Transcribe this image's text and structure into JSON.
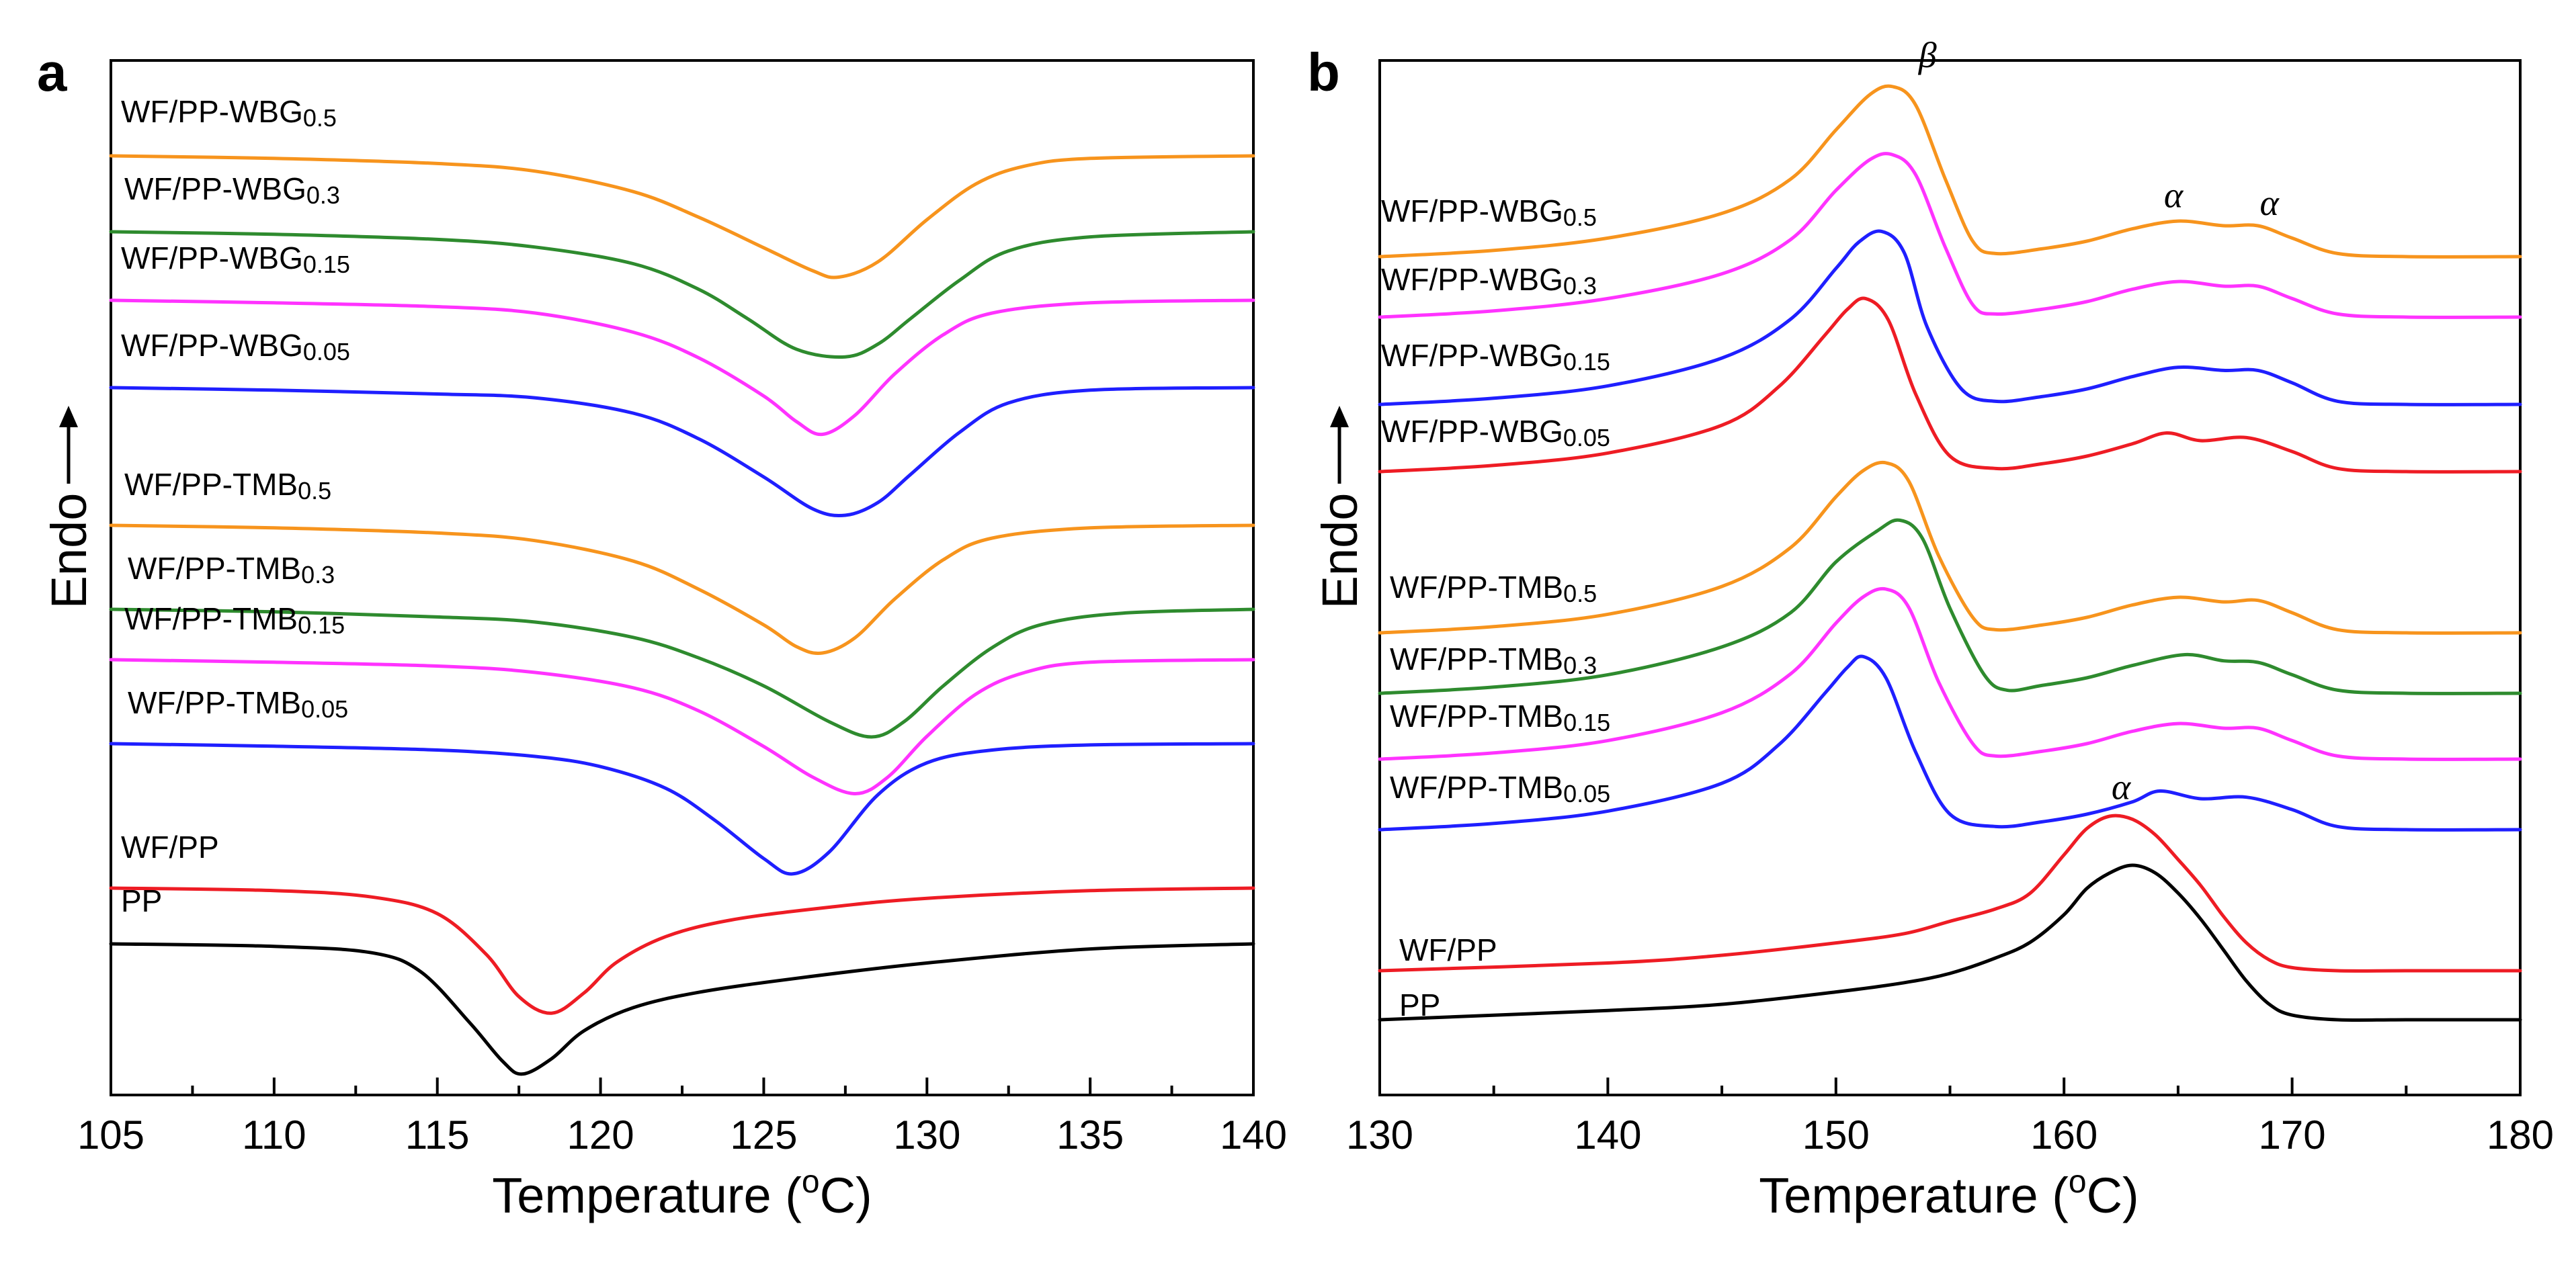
{
  "chart_data": [
    {
      "type": "line",
      "panel": "a",
      "xlabel": "Temperature (°C)",
      "ylabel": "Endo",
      "xlim": [
        105,
        140
      ],
      "xticks": [
        105,
        110,
        115,
        120,
        125,
        130,
        135,
        140
      ],
      "tick_labels": [
        "105",
        "110",
        "115",
        "120",
        "125",
        "130",
        "135",
        "140"
      ],
      "grid": false,
      "series": [
        {
          "name": "WF/PP-WBG0.5",
          "label_main": "WF/PP-WBG",
          "label_sub": "0.5",
          "color": "#f7941d",
          "x": [
            105,
            110,
            115,
            118,
            121,
            123,
            125,
            126.5,
            127.3,
            128.5,
            130,
            131.5,
            133,
            135,
            140
          ],
          "y": [
            0.0,
            0.02,
            0.06,
            0.12,
            0.28,
            0.48,
            0.72,
            0.9,
            0.95,
            0.83,
            0.5,
            0.22,
            0.08,
            0.02,
            0.0
          ]
        },
        {
          "name": "WF/PP-WBG0.3",
          "label_main": "WF/PP-WBG",
          "label_sub": "0.3",
          "color": "#2e8b2e",
          "x": [
            105,
            110,
            115,
            118,
            121,
            123,
            124.5,
            126,
            127.5,
            128.5,
            129.5,
            131,
            132.5,
            135,
            140
          ],
          "y": [
            0.0,
            0.02,
            0.06,
            0.12,
            0.25,
            0.45,
            0.68,
            0.92,
            0.98,
            0.88,
            0.68,
            0.38,
            0.15,
            0.04,
            0.0
          ]
        },
        {
          "name": "WF/PP-WBG0.15",
          "label_main": "WF/PP-WBG",
          "label_sub": "0.15",
          "color": "#ff33ff",
          "x": [
            105,
            110,
            115,
            118,
            121,
            123,
            125,
            126,
            126.8,
            127.8,
            129,
            130.5,
            132,
            135,
            140
          ],
          "y": [
            0.0,
            0.02,
            0.05,
            0.1,
            0.25,
            0.45,
            0.75,
            0.95,
            1.05,
            0.9,
            0.58,
            0.27,
            0.1,
            0.02,
            0.0
          ]
        },
        {
          "name": "WF/PP-WBG0.05",
          "label_main": "WF/PP-WBG",
          "label_sub": "0.05",
          "color": "#1f1fff",
          "x": [
            105,
            110,
            115,
            118,
            121,
            123,
            125,
            126.5,
            127.5,
            128.5,
            129.5,
            131,
            132.5,
            135,
            140
          ],
          "y": [
            0.0,
            0.02,
            0.05,
            0.08,
            0.2,
            0.4,
            0.7,
            0.95,
            1.0,
            0.9,
            0.68,
            0.35,
            0.12,
            0.02,
            0.0
          ]
        },
        {
          "name": "WF/PP-TMB0.5",
          "label_main": "WF/PP-TMB",
          "label_sub": "0.5",
          "color": "#f7941d",
          "x": [
            105,
            110,
            115,
            118,
            121,
            123,
            125,
            126,
            126.8,
            127.8,
            129,
            130.5,
            132,
            135,
            140
          ],
          "y": [
            0.0,
            0.02,
            0.06,
            0.12,
            0.28,
            0.5,
            0.78,
            0.95,
            1.0,
            0.88,
            0.58,
            0.27,
            0.1,
            0.02,
            0.0
          ]
        },
        {
          "name": "WF/PP-TMB0.3",
          "label_main": "WF/PP-TMB",
          "label_sub": "0.3",
          "color": "#2e8b2e",
          "x": [
            105,
            110,
            115,
            118,
            121,
            123,
            125,
            127,
            128.3,
            129.3,
            130.5,
            132,
            133.5,
            136,
            140
          ],
          "y": [
            0.0,
            0.02,
            0.06,
            0.1,
            0.22,
            0.38,
            0.6,
            0.88,
            1.0,
            0.88,
            0.6,
            0.3,
            0.12,
            0.03,
            0.0
          ]
        },
        {
          "name": "WF/PP-TMB0.15",
          "label_main": "WF/PP-TMB",
          "label_sub": "0.15",
          "color": "#ff33ff",
          "x": [
            105,
            110,
            115,
            118,
            121,
            123,
            125,
            126.5,
            127.8,
            128.8,
            130,
            131.5,
            133,
            135,
            140
          ],
          "y": [
            0.0,
            0.02,
            0.05,
            0.1,
            0.22,
            0.4,
            0.68,
            0.92,
            1.05,
            0.92,
            0.6,
            0.27,
            0.1,
            0.02,
            0.0
          ]
        },
        {
          "name": "WF/PP-TMB0.05",
          "label_main": "WF/PP-TMB",
          "label_sub": "0.05",
          "color": "#1f1fff",
          "x": [
            105,
            110,
            115,
            118,
            120,
            122,
            123.5,
            125,
            125.9,
            127,
            128.5,
            130,
            132,
            135,
            140
          ],
          "y": [
            0.0,
            0.02,
            0.05,
            0.1,
            0.18,
            0.35,
            0.6,
            0.9,
            1.02,
            0.85,
            0.4,
            0.15,
            0.05,
            0.01,
            0.0
          ]
        },
        {
          "name": "WF/PP",
          "label_main": "WF/PP",
          "label_sub": "",
          "color": "#ee1c24",
          "x": [
            105,
            110,
            113,
            115,
            116.5,
            117.5,
            118.5,
            119.5,
            120.5,
            122,
            124,
            127,
            130,
            135,
            140
          ],
          "y": [
            0.0,
            0.02,
            0.07,
            0.2,
            0.52,
            0.85,
            0.98,
            0.82,
            0.58,
            0.38,
            0.25,
            0.15,
            0.08,
            0.02,
            0.0
          ]
        },
        {
          "name": "PP",
          "label_main": "PP",
          "label_sub": "",
          "color": "#000000",
          "x": [
            105,
            110,
            113,
            114.5,
            116,
            117,
            117.6,
            118.5,
            119.5,
            121,
            123,
            126,
            130,
            135,
            140
          ],
          "y": [
            0.0,
            0.02,
            0.07,
            0.22,
            0.62,
            0.92,
            1.02,
            0.9,
            0.68,
            0.5,
            0.38,
            0.27,
            0.15,
            0.04,
            0.0
          ]
        }
      ]
    },
    {
      "type": "line",
      "panel": "b",
      "xlabel": "Temperature (°C)",
      "ylabel": "Endo",
      "xlim": [
        130,
        180
      ],
      "xticks": [
        130,
        140,
        150,
        160,
        170,
        180
      ],
      "tick_labels": [
        "130",
        "140",
        "150",
        "160",
        "170",
        "180"
      ],
      "grid": false,
      "annotations": [
        {
          "text": "β",
          "x": 152.4,
          "series": "WF/PP-WBG0.5"
        },
        {
          "text": "α",
          "x": 164.8,
          "series": "WF/PP-WBG0.5"
        },
        {
          "text": "α",
          "x": 169.0,
          "series": "WF/PP-WBG0.5"
        },
        {
          "text": "α",
          "x": 162.5,
          "series": "WF/PP"
        }
      ],
      "series": [
        {
          "name": "WF/PP-WBG0.5",
          "label_main": "WF/PP-WBG",
          "label_sub": "0.5",
          "color": "#f7941d",
          "x": [
            130,
            135,
            140,
            145,
            148,
            150,
            151.5,
            152.5,
            153.5,
            154.8,
            156,
            157,
            159,
            161,
            163,
            165,
            167,
            168.5,
            170,
            172,
            175,
            180
          ],
          "y": [
            0.0,
            0.04,
            0.12,
            0.28,
            0.5,
            0.82,
            1.05,
            1.1,
            0.98,
            0.5,
            0.1,
            0.02,
            0.05,
            0.1,
            0.18,
            0.23,
            0.2,
            0.2,
            0.12,
            0.02,
            0.0,
            0.0
          ]
        },
        {
          "name": "WF/PP-WBG0.3",
          "label_main": "WF/PP-WBG",
          "label_sub": "0.3",
          "color": "#ff33ff",
          "x": [
            130,
            135,
            140,
            145,
            148,
            150,
            151.5,
            152.5,
            153.5,
            154.8,
            156,
            157,
            159,
            161,
            163,
            165,
            167,
            168.5,
            170,
            172,
            175,
            180
          ],
          "y": [
            0.0,
            0.04,
            0.12,
            0.28,
            0.5,
            0.82,
            1.02,
            1.05,
            0.92,
            0.45,
            0.08,
            0.02,
            0.05,
            0.1,
            0.18,
            0.23,
            0.2,
            0.2,
            0.12,
            0.02,
            0.0,
            0.0
          ]
        },
        {
          "name": "WF/PP-WBG0.15",
          "label_main": "WF/PP-WBG",
          "label_sub": "0.15",
          "color": "#1f1fff",
          "x": [
            130,
            135,
            140,
            145,
            148,
            150,
            151,
            152,
            153,
            154,
            155.5,
            157,
            159,
            161,
            163,
            165,
            167,
            168.5,
            170,
            172,
            175,
            180
          ],
          "y": [
            0.0,
            0.04,
            0.12,
            0.3,
            0.55,
            0.88,
            1.05,
            1.12,
            0.98,
            0.5,
            0.1,
            0.02,
            0.05,
            0.1,
            0.18,
            0.24,
            0.22,
            0.22,
            0.14,
            0.02,
            0.0,
            0.0
          ]
        },
        {
          "name": "WF/PP-WBG0.05",
          "label_main": "WF/PP-WBG",
          "label_sub": "0.05",
          "color": "#ee1c24",
          "x": [
            130,
            135,
            140,
            145,
            147.5,
            149.5,
            150.5,
            151.3,
            152.3,
            153.5,
            155,
            157,
            159,
            161,
            163,
            164.5,
            166,
            168,
            170,
            172,
            175,
            180
          ],
          "y": [
            0.0,
            0.04,
            0.12,
            0.3,
            0.55,
            0.88,
            1.05,
            1.12,
            0.98,
            0.5,
            0.1,
            0.02,
            0.05,
            0.1,
            0.18,
            0.25,
            0.2,
            0.22,
            0.13,
            0.02,
            0.0,
            0.0
          ]
        },
        {
          "name": "WF/PP-TMB0.5",
          "label_main": "WF/PP-TMB",
          "label_sub": "0.5",
          "color": "#f7941d",
          "x": [
            130,
            135,
            140,
            145,
            148,
            150,
            151.2,
            152.2,
            153.2,
            154.5,
            156,
            157,
            159,
            161,
            163,
            165,
            167,
            168.5,
            170,
            172,
            175,
            180
          ],
          "y": [
            0.0,
            0.04,
            0.12,
            0.3,
            0.55,
            0.88,
            1.05,
            1.1,
            0.98,
            0.5,
            0.1,
            0.02,
            0.05,
            0.1,
            0.18,
            0.23,
            0.2,
            0.21,
            0.13,
            0.02,
            0.0,
            0.0
          ]
        },
        {
          "name": "WF/PP-TMB0.3",
          "label_main": "WF/PP-TMB",
          "label_sub": "0.3",
          "color": "#2e8b2e",
          "x": [
            130,
            135,
            140,
            145,
            148,
            150,
            151.8,
            152.8,
            153.8,
            155,
            156.5,
            157.5,
            159,
            161,
            163,
            165.3,
            167,
            168.5,
            170,
            172,
            175,
            180
          ],
          "y": [
            0.0,
            0.04,
            0.12,
            0.3,
            0.52,
            0.85,
            1.05,
            1.12,
            1.0,
            0.55,
            0.12,
            0.02,
            0.05,
            0.1,
            0.18,
            0.25,
            0.21,
            0.2,
            0.12,
            0.02,
            0.0,
            0.0
          ]
        },
        {
          "name": "WF/PP-TMB0.15",
          "label_main": "WF/PP-TMB",
          "label_sub": "0.15",
          "color": "#ff33ff",
          "x": [
            130,
            135,
            140,
            145,
            148,
            150,
            151.2,
            152.2,
            153.2,
            154.5,
            156,
            157,
            159,
            161,
            163,
            165,
            167,
            168.5,
            170,
            172,
            175,
            180
          ],
          "y": [
            0.0,
            0.04,
            0.12,
            0.3,
            0.55,
            0.88,
            1.05,
            1.1,
            0.98,
            0.5,
            0.1,
            0.02,
            0.05,
            0.1,
            0.18,
            0.23,
            0.2,
            0.2,
            0.12,
            0.02,
            0.0,
            0.0
          ]
        },
        {
          "name": "WF/PP-TMB0.05",
          "label_main": "WF/PP-TMB",
          "label_sub": "0.05",
          "color": "#1f1fff",
          "x": [
            130,
            135,
            140,
            145,
            147.5,
            149.5,
            150.5,
            151.2,
            152.2,
            153.5,
            155,
            157,
            159,
            161,
            163,
            164.2,
            166,
            168,
            170,
            172,
            175,
            180
          ],
          "y": [
            0.0,
            0.04,
            0.12,
            0.3,
            0.55,
            0.88,
            1.05,
            1.12,
            0.98,
            0.5,
            0.1,
            0.02,
            0.05,
            0.1,
            0.18,
            0.25,
            0.2,
            0.21,
            0.13,
            0.02,
            0.0,
            0.0
          ]
        },
        {
          "name": "WF/PP",
          "label_main": "WF/PP",
          "label_sub": "",
          "color": "#ee1c24",
          "x": [
            130,
            140,
            145,
            150,
            153,
            155,
            157,
            158.5,
            160,
            161,
            162,
            163,
            164,
            165,
            166,
            167,
            168,
            169,
            170,
            172,
            175,
            180
          ],
          "y": [
            0.0,
            0.05,
            0.1,
            0.18,
            0.24,
            0.32,
            0.4,
            0.5,
            0.75,
            0.92,
            1.0,
            0.98,
            0.88,
            0.72,
            0.55,
            0.35,
            0.18,
            0.07,
            0.02,
            0.0,
            0.0,
            0.0
          ]
        },
        {
          "name": "PP",
          "label_main": "PP",
          "label_sub": "",
          "color": "#000000",
          "x": [
            130,
            140,
            145,
            150,
            153,
            155,
            157,
            158.5,
            160,
            161,
            162,
            163,
            164,
            165,
            166,
            167,
            168,
            169,
            170,
            172,
            175,
            180
          ],
          "y": [
            0.0,
            0.06,
            0.1,
            0.18,
            0.24,
            0.3,
            0.4,
            0.5,
            0.68,
            0.85,
            0.95,
            1.0,
            0.95,
            0.82,
            0.65,
            0.45,
            0.25,
            0.1,
            0.03,
            0.0,
            0.0,
            0.0
          ]
        }
      ]
    }
  ],
  "panels": [
    {
      "label": "a",
      "xlabel_main": "Temperature (",
      "xlabel_sup": "o",
      "xlabel_end": "C)",
      "ylabel": "Endo"
    },
    {
      "label": "b",
      "xlabel_main": "Temperature (",
      "xlabel_sup": "o",
      "xlabel_end": "C)",
      "ylabel": "Endo"
    }
  ]
}
